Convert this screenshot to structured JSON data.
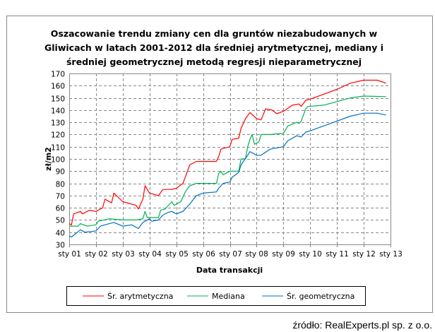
{
  "chart_data": {
    "type": "line",
    "title_lines": [
      "Oszacowanie trendu zmiany cen dla gruntów  niezabudowanych w",
      "Gliwicach w latach 2001-2012  dla średniej arytmetycznej, mediany i",
      "średniej geometrycznej metodą regresji nieparametrycznej"
    ],
    "xlabel": "Data transakcji",
    "ylabel": "zł/m2",
    "ylim": [
      30,
      170
    ],
    "yticks": [
      30,
      40,
      50,
      60,
      70,
      80,
      90,
      100,
      110,
      120,
      130,
      140,
      150,
      160,
      170
    ],
    "xlim": [
      "2001-01",
      "2013-01"
    ],
    "xtick_labels": [
      "sty 01",
      "sty 02",
      "sty 03",
      "sty 04",
      "sty 05",
      "sty 06",
      "sty 07",
      "sty 08",
      "sty 09",
      "sty 10",
      "sty 11",
      "sty 12",
      "sty 13"
    ],
    "grid": true,
    "legend_position": "bottom",
    "series": [
      {
        "name": "Śr. arytmetyczna",
        "color": "#ff0000",
        "points": [
          [
            "2001-01",
            47
          ],
          [
            "2001-02",
            46
          ],
          [
            "2001-03",
            55
          ],
          [
            "2001-06",
            57
          ],
          [
            "2001-07",
            55
          ],
          [
            "2001-10",
            58
          ],
          [
            "2002-01",
            57
          ],
          [
            "2002-04",
            60
          ],
          [
            "2002-05",
            67
          ],
          [
            "2002-08",
            64
          ],
          [
            "2002-09",
            72
          ],
          [
            "2003-01",
            65
          ],
          [
            "2003-07",
            62
          ],
          [
            "2003-08",
            59
          ],
          [
            "2003-10",
            67
          ],
          [
            "2003-11",
            78
          ],
          [
            "2004-01",
            72
          ],
          [
            "2004-05",
            70
          ],
          [
            "2004-07",
            75
          ],
          [
            "2004-11",
            75
          ],
          [
            "2005-01",
            76
          ],
          [
            "2005-04",
            80
          ],
          [
            "2005-06",
            90
          ],
          [
            "2005-07",
            95
          ],
          [
            "2005-10",
            98
          ],
          [
            "2006-01",
            98
          ],
          [
            "2006-07",
            98
          ],
          [
            "2006-08",
            102
          ],
          [
            "2006-09",
            108
          ],
          [
            "2007-01",
            110
          ],
          [
            "2007-02",
            116
          ],
          [
            "2007-05",
            117
          ],
          [
            "2007-06",
            125
          ],
          [
            "2007-08",
            133
          ],
          [
            "2007-10",
            138
          ],
          [
            "2008-01",
            133
          ],
          [
            "2008-03",
            132
          ],
          [
            "2008-05",
            141
          ],
          [
            "2008-08",
            140
          ],
          [
            "2008-10",
            137
          ],
          [
            "2009-01",
            139
          ],
          [
            "2009-05",
            144
          ],
          [
            "2009-08",
            145
          ],
          [
            "2009-09",
            143
          ],
          [
            "2009-11",
            148
          ],
          [
            "2010-01",
            149
          ],
          [
            "2010-07",
            153
          ],
          [
            "2011-01",
            157
          ],
          [
            "2011-07",
            162
          ],
          [
            "2012-01",
            164.5
          ],
          [
            "2012-07",
            164.5
          ],
          [
            "2012-11",
            162
          ]
        ]
      },
      {
        "name": "Mediana",
        "color": "#00b050",
        "points": [
          [
            "2001-01",
            45
          ],
          [
            "2001-05",
            45
          ],
          [
            "2001-06",
            47
          ],
          [
            "2001-09",
            45
          ],
          [
            "2002-01",
            46
          ],
          [
            "2002-02",
            49
          ],
          [
            "2002-07",
            51
          ],
          [
            "2003-01",
            50
          ],
          [
            "2003-07",
            50
          ],
          [
            "2003-10",
            51
          ],
          [
            "2003-11",
            57
          ],
          [
            "2003-12",
            52
          ],
          [
            "2004-05",
            52
          ],
          [
            "2004-06",
            58
          ],
          [
            "2004-08",
            59
          ],
          [
            "2004-11",
            65
          ],
          [
            "2004-12",
            62
          ],
          [
            "2005-03",
            65
          ],
          [
            "2005-05",
            73
          ],
          [
            "2005-07",
            78
          ],
          [
            "2005-10",
            80
          ],
          [
            "2006-01",
            80
          ],
          [
            "2006-07",
            80
          ],
          [
            "2006-08",
            88
          ],
          [
            "2006-09",
            90
          ],
          [
            "2006-10",
            87
          ],
          [
            "2007-01",
            90
          ],
          [
            "2007-05",
            90
          ],
          [
            "2007-06",
            100
          ],
          [
            "2007-08",
            100
          ],
          [
            "2007-09",
            110
          ],
          [
            "2007-10",
            116
          ],
          [
            "2007-11",
            120
          ],
          [
            "2007-12",
            112
          ],
          [
            "2008-02",
            114
          ],
          [
            "2008-03",
            120
          ],
          [
            "2008-07",
            120
          ],
          [
            "2009-01",
            121
          ],
          [
            "2009-03",
            127
          ],
          [
            "2009-07",
            130
          ],
          [
            "2009-08",
            129
          ],
          [
            "2009-09",
            131
          ],
          [
            "2009-11",
            141
          ],
          [
            "2009-12",
            143
          ],
          [
            "2010-07",
            144
          ],
          [
            "2011-01",
            147
          ],
          [
            "2011-07",
            150
          ],
          [
            "2012-01",
            151.5
          ],
          [
            "2012-11",
            151
          ]
        ]
      },
      {
        "name": "Śr. geometryczna",
        "color": "#0070c0",
        "points": [
          [
            "2001-01",
            37
          ],
          [
            "2001-02",
            36
          ],
          [
            "2001-06",
            42
          ],
          [
            "2001-08",
            40
          ],
          [
            "2002-01",
            41
          ],
          [
            "2002-03",
            45
          ],
          [
            "2002-07",
            47
          ],
          [
            "2002-09",
            48
          ],
          [
            "2003-01",
            45
          ],
          [
            "2003-05",
            46
          ],
          [
            "2003-08",
            43
          ],
          [
            "2003-10",
            48
          ],
          [
            "2004-01",
            51
          ],
          [
            "2004-02",
            49
          ],
          [
            "2004-05",
            50
          ],
          [
            "2004-07",
            54
          ],
          [
            "2004-09",
            56
          ],
          [
            "2004-11",
            57
          ],
          [
            "2005-01",
            55
          ],
          [
            "2005-04",
            57
          ],
          [
            "2005-07",
            63
          ],
          [
            "2005-10",
            70
          ],
          [
            "2006-01",
            72
          ],
          [
            "2006-07",
            73
          ],
          [
            "2006-08",
            76
          ],
          [
            "2006-10",
            80
          ],
          [
            "2007-01",
            81
          ],
          [
            "2007-02",
            85
          ],
          [
            "2007-05",
            89
          ],
          [
            "2007-06",
            95
          ],
          [
            "2007-09",
            103
          ],
          [
            "2007-10",
            106
          ],
          [
            "2008-01",
            103
          ],
          [
            "2008-03",
            103
          ],
          [
            "2008-07",
            108
          ],
          [
            "2009-01",
            110
          ],
          [
            "2009-03",
            115
          ],
          [
            "2009-07",
            119
          ],
          [
            "2009-09",
            118
          ],
          [
            "2009-11",
            122
          ],
          [
            "2010-01",
            123
          ],
          [
            "2010-07",
            127
          ],
          [
            "2011-01",
            131
          ],
          [
            "2011-07",
            135
          ],
          [
            "2012-01",
            137.5
          ],
          [
            "2012-07",
            137.5
          ],
          [
            "2012-11",
            136
          ]
        ]
      }
    ]
  },
  "source": "źródło: RealExperts.pl sp. z o.o."
}
